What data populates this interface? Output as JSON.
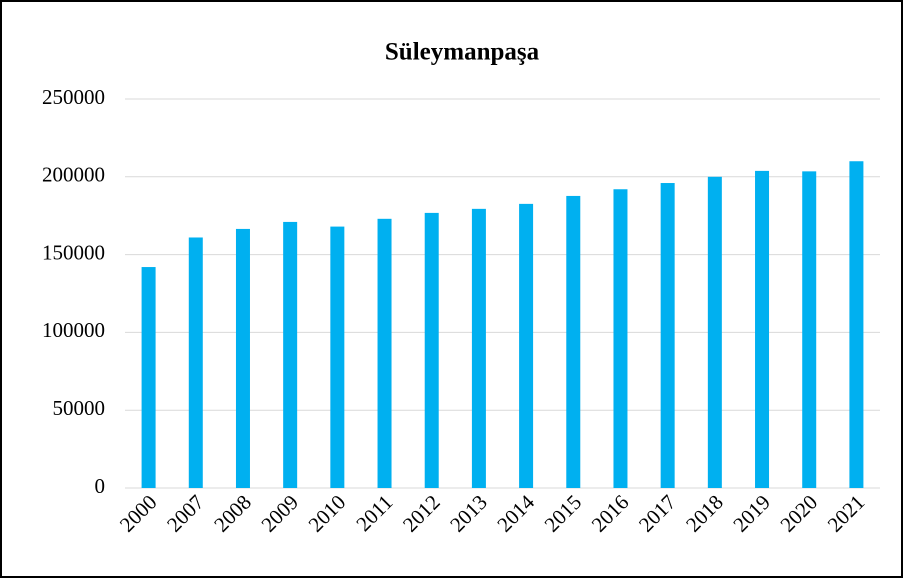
{
  "chart_data": {
    "type": "bar",
    "title": "Süleymanpaşa",
    "categories": [
      "2000",
      "2007",
      "2008",
      "2009",
      "2010",
      "2011",
      "2012",
      "2013",
      "2014",
      "2015",
      "2016",
      "2017",
      "2018",
      "2019",
      "2020",
      "2021"
    ],
    "values": [
      142000,
      161000,
      166500,
      171000,
      168000,
      173000,
      176800,
      179400,
      182600,
      187700,
      192000,
      196000,
      200000,
      203800,
      203500,
      210000
    ],
    "color": "#00b0f0",
    "ylim": [
      0,
      250000
    ],
    "yticks": [
      0,
      50000,
      100000,
      150000,
      200000,
      250000
    ],
    "grid": true
  }
}
